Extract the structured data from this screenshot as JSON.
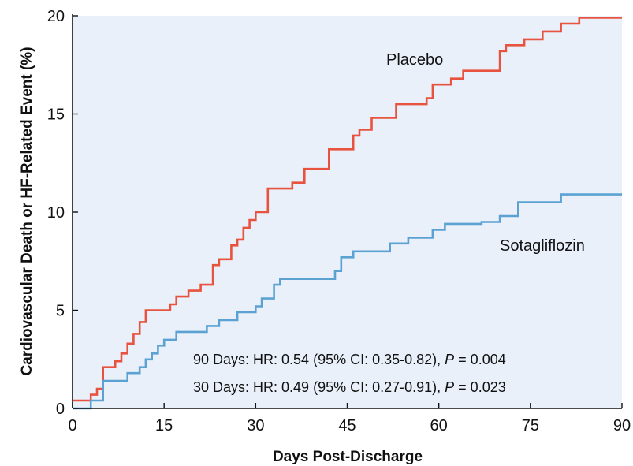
{
  "chart_data": {
    "type": "line",
    "step": true,
    "xlabel": "Days Post-Discharge",
    "ylabel": "Cardiovascular Death or HF-Related Event (%)",
    "xlim": [
      0,
      90
    ],
    "ylim": [
      0,
      20
    ],
    "xticks": [
      0,
      15,
      30,
      45,
      60,
      75,
      90
    ],
    "yticks": [
      0,
      5,
      10,
      15,
      20
    ],
    "grid": false,
    "background": "#e9f0fa",
    "series": [
      {
        "name": "Placebo",
        "color": "#e8533f",
        "points": [
          [
            0,
            0.4
          ],
          [
            3,
            0.7
          ],
          [
            4,
            1.0
          ],
          [
            5,
            2.1
          ],
          [
            7,
            2.4
          ],
          [
            8,
            2.8
          ],
          [
            9,
            3.3
          ],
          [
            10,
            3.8
          ],
          [
            11,
            4.4
          ],
          [
            12,
            5.0
          ],
          [
            16,
            5.3
          ],
          [
            17,
            5.7
          ],
          [
            19,
            6.0
          ],
          [
            21,
            6.3
          ],
          [
            23,
            7.3
          ],
          [
            24,
            7.6
          ],
          [
            26,
            8.3
          ],
          [
            27,
            8.6
          ],
          [
            28,
            9.2
          ],
          [
            29,
            9.6
          ],
          [
            30,
            10.0
          ],
          [
            32,
            11.2
          ],
          [
            36,
            11.5
          ],
          [
            38,
            12.2
          ],
          [
            42,
            13.2
          ],
          [
            46,
            13.9
          ],
          [
            47,
            14.2
          ],
          [
            49,
            14.8
          ],
          [
            53,
            15.5
          ],
          [
            58,
            15.8
          ],
          [
            59,
            16.5
          ],
          [
            62,
            16.8
          ],
          [
            64,
            17.2
          ],
          [
            70,
            18.2
          ],
          [
            71,
            18.5
          ],
          [
            74,
            18.8
          ],
          [
            77,
            19.2
          ],
          [
            80,
            19.6
          ],
          [
            83,
            19.9
          ],
          [
            90,
            19.9
          ]
        ]
      },
      {
        "name": "Sotagliflozin",
        "color": "#5ba2d3",
        "points": [
          [
            0,
            0.0
          ],
          [
            3,
            0.4
          ],
          [
            5,
            1.4
          ],
          [
            9,
            1.8
          ],
          [
            11,
            2.1
          ],
          [
            12,
            2.5
          ],
          [
            13,
            2.8
          ],
          [
            14,
            3.2
          ],
          [
            15,
            3.5
          ],
          [
            17,
            3.9
          ],
          [
            22,
            4.2
          ],
          [
            24,
            4.5
          ],
          [
            27,
            4.9
          ],
          [
            30,
            5.2
          ],
          [
            31,
            5.6
          ],
          [
            33,
            6.3
          ],
          [
            34,
            6.6
          ],
          [
            43,
            7.0
          ],
          [
            44,
            7.7
          ],
          [
            46,
            8.0
          ],
          [
            52,
            8.4
          ],
          [
            55,
            8.7
          ],
          [
            59,
            9.1
          ],
          [
            61,
            9.4
          ],
          [
            67,
            9.5
          ],
          [
            70,
            9.8
          ],
          [
            73,
            10.5
          ],
          [
            80,
            10.9
          ],
          [
            90,
            10.9
          ]
        ]
      }
    ],
    "annotations": [
      {
        "text_pre": "90 Days: HR: 0.54 (95% CI: 0.35-0.82), ",
        "p_symbol": "P",
        "text_post": " = 0.004"
      },
      {
        "text_pre": "30 Days: HR: 0.49 (95% CI: 0.27-0.91), ",
        "p_symbol": "P",
        "text_post": " = 0.023"
      }
    ]
  }
}
